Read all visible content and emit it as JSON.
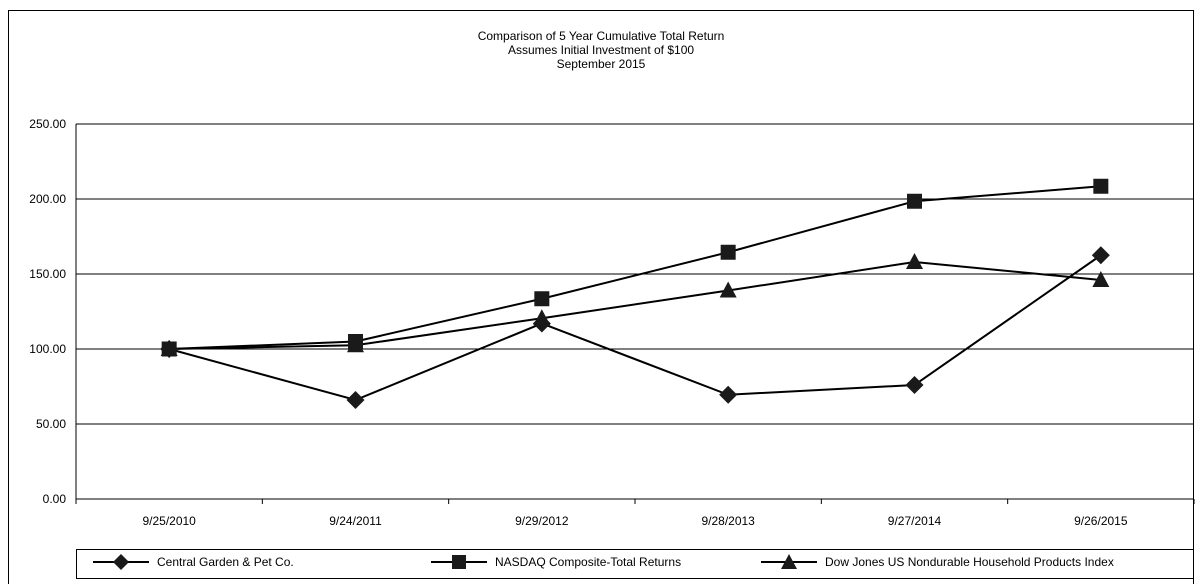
{
  "chart_data": {
    "type": "line",
    "title": "Comparison of 5 Year Cumulative Total Return",
    "subtitle_lines": [
      "Assumes Initial Investment of $100",
      "September 2015"
    ],
    "categories": [
      "9/25/2010",
      "9/24/2011",
      "9/29/2012",
      "9/28/2013",
      "9/27/2014",
      "9/26/2015"
    ],
    "ylim": [
      0,
      250
    ],
    "yticks": [
      "0.00",
      "50.00",
      "100.00",
      "150.00",
      "200.00",
      "250.00"
    ],
    "grid": "horizontal",
    "legend_position": "bottom",
    "series": [
      {
        "name": "Central Garden & Pet Co.",
        "marker": "diamond",
        "values": [
          100,
          66,
          117,
          69.5,
          76,
          162.5
        ]
      },
      {
        "name": "NASDAQ Composite-Total Returns",
        "marker": "square",
        "values": [
          100,
          105,
          133.5,
          164.5,
          198.5,
          208.5
        ]
      },
      {
        "name": "Dow Jones US Nondurable Household Products Index",
        "marker": "triangle",
        "values": [
          100,
          102.5,
          120.5,
          139,
          158,
          146
        ]
      }
    ],
    "line_color": "#000000",
    "marker_color": "#1a1a1a"
  }
}
